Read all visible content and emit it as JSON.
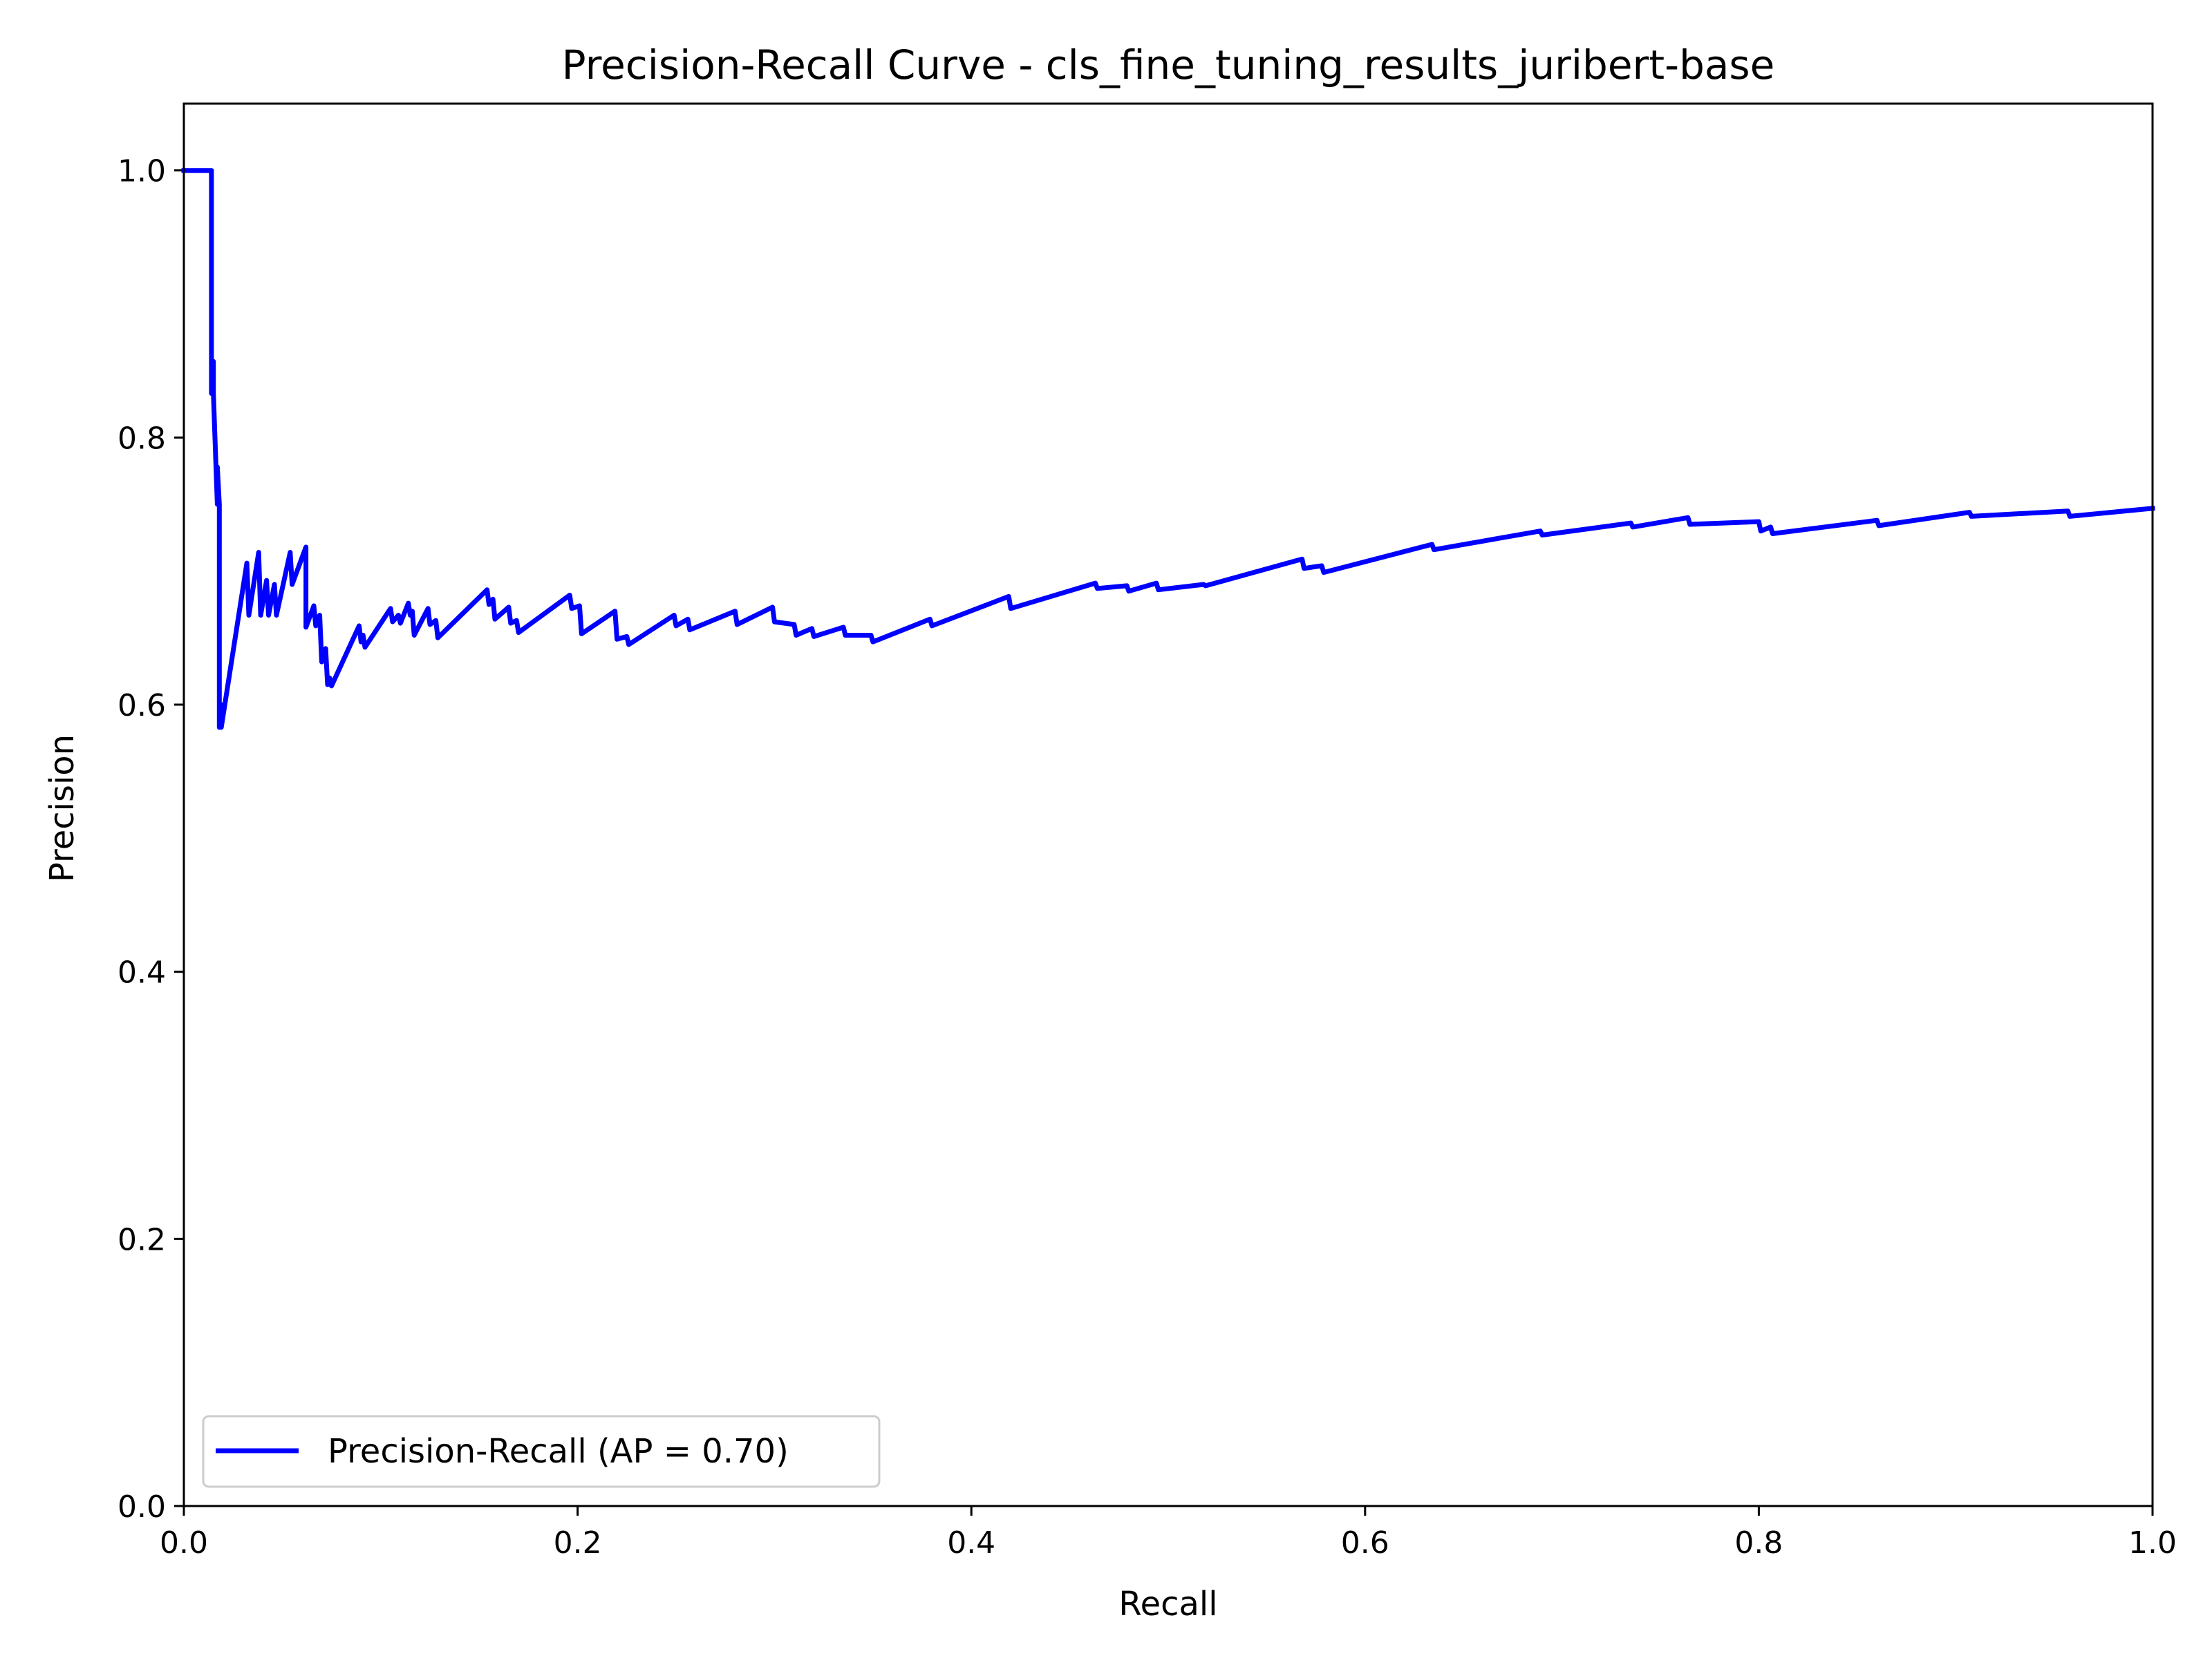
{
  "chart_data": {
    "type": "line",
    "title": "Precision-Recall Curve - cls_fine_tuning_results_juribert-base",
    "xlabel": "Recall",
    "ylabel": "Precision",
    "xlim": [
      0.0,
      1.0
    ],
    "ylim": [
      0.0,
      1.05
    ],
    "xticks": [
      0.0,
      0.2,
      0.4,
      0.6,
      0.8,
      1.0
    ],
    "xtick_labels": [
      "0.0",
      "0.2",
      "0.4",
      "0.6",
      "0.8",
      "1.0"
    ],
    "yticks": [
      0.0,
      0.2,
      0.4,
      0.6,
      0.8,
      1.0
    ],
    "ytick_labels": [
      "0.0",
      "0.2",
      "0.4",
      "0.6",
      "0.8",
      "1.0"
    ],
    "grid": false,
    "legend_position": "lower left",
    "series": [
      {
        "name": "Precision-Recall (AP = 0.70)",
        "color": "#0000ff",
        "x": [
          0.0,
          0.014,
          0.014,
          0.015,
          0.015,
          0.017,
          0.017,
          0.018,
          0.018,
          0.019,
          0.019,
          0.032,
          0.033,
          0.038,
          0.039,
          0.042,
          0.043,
          0.046,
          0.047,
          0.054,
          0.055,
          0.062,
          0.062,
          0.066,
          0.067,
          0.069,
          0.07,
          0.072,
          0.073,
          0.074,
          0.075,
          0.089,
          0.09,
          0.091,
          0.092,
          0.105,
          0.106,
          0.109,
          0.11,
          0.114,
          0.115,
          0.116,
          0.117,
          0.124,
          0.125,
          0.128,
          0.129,
          0.154,
          0.155,
          0.157,
          0.158,
          0.165,
          0.166,
          0.169,
          0.17,
          0.196,
          0.197,
          0.201,
          0.202,
          0.219,
          0.22,
          0.225,
          0.226,
          0.249,
          0.25,
          0.256,
          0.257,
          0.28,
          0.281,
          0.299,
          0.3,
          0.31,
          0.311,
          0.319,
          0.32,
          0.335,
          0.336,
          0.349,
          0.35,
          0.379,
          0.38,
          0.419,
          0.42,
          0.463,
          0.464,
          0.479,
          0.48,
          0.494,
          0.495,
          0.518,
          0.519,
          0.568,
          0.569,
          0.578,
          0.579,
          0.634,
          0.635,
          0.689,
          0.69,
          0.735,
          0.736,
          0.764,
          0.765,
          0.8,
          0.801,
          0.806,
          0.807,
          0.86,
          0.861,
          0.907,
          0.908,
          0.957,
          0.958,
          1.0
        ],
        "y": [
          1.0,
          1.0,
          0.833,
          0.857,
          0.833,
          0.75,
          0.778,
          0.75,
          0.583,
          0.6,
          0.583,
          0.706,
          0.667,
          0.714,
          0.667,
          0.693,
          0.667,
          0.69,
          0.667,
          0.714,
          0.69,
          0.718,
          0.658,
          0.674,
          0.659,
          0.667,
          0.632,
          0.642,
          0.615,
          0.62,
          0.614,
          0.659,
          0.647,
          0.652,
          0.643,
          0.672,
          0.662,
          0.667,
          0.661,
          0.676,
          0.667,
          0.67,
          0.652,
          0.672,
          0.66,
          0.663,
          0.65,
          0.686,
          0.675,
          0.679,
          0.664,
          0.673,
          0.661,
          0.663,
          0.654,
          0.682,
          0.672,
          0.674,
          0.653,
          0.67,
          0.649,
          0.651,
          0.645,
          0.667,
          0.659,
          0.664,
          0.656,
          0.67,
          0.66,
          0.673,
          0.662,
          0.66,
          0.652,
          0.657,
          0.651,
          0.658,
          0.652,
          0.652,
          0.647,
          0.664,
          0.659,
          0.681,
          0.672,
          0.691,
          0.687,
          0.689,
          0.685,
          0.691,
          0.686,
          0.69,
          0.689,
          0.709,
          0.702,
          0.704,
          0.699,
          0.72,
          0.716,
          0.73,
          0.727,
          0.736,
          0.733,
          0.74,
          0.735,
          0.737,
          0.73,
          0.733,
          0.728,
          0.738,
          0.734,
          0.744,
          0.741,
          0.745,
          0.741,
          0.747
        ]
      }
    ]
  }
}
